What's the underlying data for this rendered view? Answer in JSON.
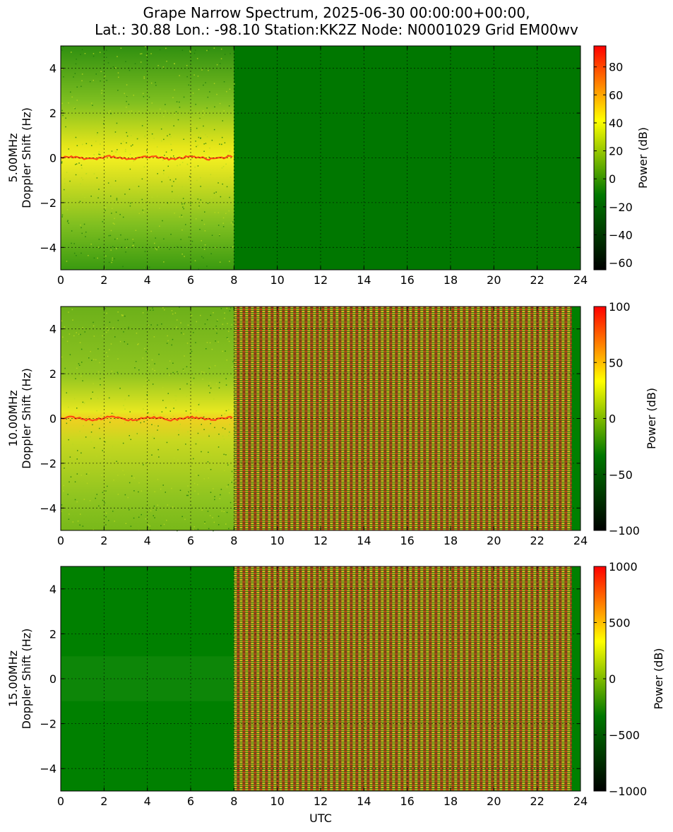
{
  "title": {
    "line1": "Grape Narrow Spectrum, 2025-06-30 00:00:00+00:00,",
    "line2": "Lat.: 30.88 Lon.: -98.10 Station:KK2Z Node: N0001029 Grid EM00wv"
  },
  "xlabel": "UTC",
  "colors": {
    "colormap": [
      "#000000",
      "#007700",
      "#ffff00",
      "#ff0000"
    ],
    "grid": "#000000"
  },
  "chart_data": [
    {
      "type": "heatmap",
      "panel_label": "5.00MHz",
      "ylabel": "Doppler Shift (Hz)",
      "xlim": [
        0,
        24
      ],
      "ylim": [
        -5,
        5
      ],
      "x_ticks": [
        0,
        2,
        4,
        6,
        8,
        10,
        12,
        14,
        16,
        18,
        20,
        22,
        24
      ],
      "y_ticks": [
        -4,
        -2,
        0,
        2,
        4
      ],
      "grid": true,
      "data_end_hour": 8,
      "carrier_hz": 0,
      "after_data": "flat",
      "colorbar": {
        "label": "Power (dB)",
        "range": [
          -65,
          95
        ],
        "ticks": [
          -60,
          -40,
          -20,
          0,
          20,
          40,
          60,
          80
        ]
      }
    },
    {
      "type": "heatmap",
      "panel_label": "10.00MHz",
      "ylabel": "Doppler Shift (Hz)",
      "xlim": [
        0,
        24
      ],
      "ylim": [
        -5,
        5
      ],
      "x_ticks": [
        0,
        2,
        4,
        6,
        8,
        10,
        12,
        14,
        16,
        18,
        20,
        22,
        24
      ],
      "y_ticks": [
        -4,
        -2,
        0,
        2,
        4
      ],
      "grid": true,
      "data_end_hour": 8,
      "carrier_hz": 0,
      "after_data": "striped",
      "striped_end_hour": 23.6,
      "colorbar": {
        "label": "Power (dB)",
        "range": [
          -100,
          100
        ],
        "ticks": [
          -100,
          -50,
          0,
          50,
          100
        ]
      }
    },
    {
      "type": "heatmap",
      "panel_label": "15.00MHz",
      "ylabel": "Doppler Shift (Hz)",
      "xlim": [
        0,
        24
      ],
      "ylim": [
        -5,
        5
      ],
      "x_ticks": [
        0,
        2,
        4,
        6,
        8,
        10,
        12,
        14,
        16,
        18,
        20,
        22,
        24
      ],
      "y_ticks": [
        -4,
        -2,
        0,
        2,
        4
      ],
      "grid": true,
      "data_end_hour": 8,
      "carrier_hz": 0,
      "after_data": "striped",
      "striped_end_hour": 23.6,
      "colorbar": {
        "label": "Power (dB)",
        "range": [
          -1000,
          1000
        ],
        "ticks": [
          -1000,
          -500,
          0,
          500,
          1000
        ]
      }
    }
  ]
}
